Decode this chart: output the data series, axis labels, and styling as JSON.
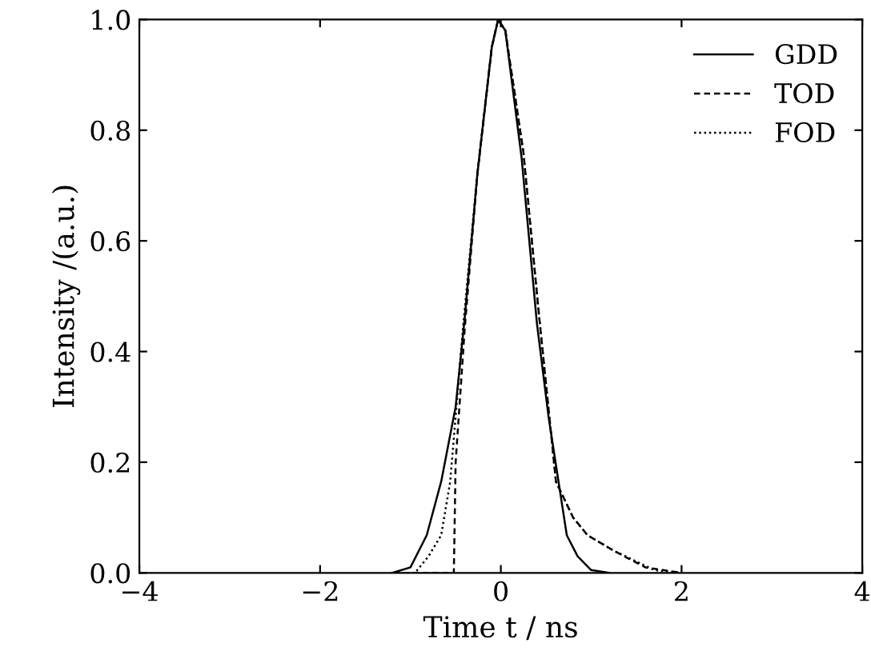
{
  "chart_data": {
    "type": "line",
    "xlabel": "Time t / ns",
    "ylabel": "Intensity /(a.u.)",
    "xlim": [
      -4,
      4
    ],
    "ylim": [
      0,
      1
    ],
    "xticks": [
      {
        "value": -4,
        "label": "−4"
      },
      {
        "value": -2,
        "label": "−2"
      },
      0,
      2,
      4
    ],
    "yticks": [
      {
        "value": 0,
        "label": "0.0"
      },
      {
        "value": 0.2,
        "label": "0.2"
      },
      {
        "value": 0.4,
        "label": "0.4"
      },
      {
        "value": 0.6,
        "label": "0.6"
      },
      {
        "value": 0.8,
        "label": "0.8"
      },
      {
        "value": 1,
        "label": "1.0"
      }
    ],
    "legend": "top right",
    "grid": false,
    "marker": "none",
    "series": [
      {
        "name": "GDD",
        "color": "#000000",
        "line_style": "solid",
        "x": [
          -1.2,
          -1.0,
          -0.82,
          -0.66,
          -0.5,
          -0.4,
          -0.26,
          -0.1,
          -0.03,
          0.05,
          0.23,
          0.4,
          0.53,
          0.73,
          0.85,
          1.0,
          1.2
        ],
        "values": [
          0,
          0.01,
          0.068,
          0.165,
          0.3,
          0.46,
          0.72,
          0.95,
          1.0,
          0.98,
          0.75,
          0.45,
          0.28,
          0.068,
          0.03,
          0.005,
          0
        ]
      },
      {
        "name": "TOD",
        "color": "#000000",
        "line_style": "dashed",
        "x": [
          -1.2,
          -0.52,
          -0.5,
          -0.4,
          -0.26,
          -0.1,
          -0.03,
          0.05,
          0.25,
          0.42,
          0.61,
          0.8,
          0.96,
          1.25,
          1.6,
          2.0
        ],
        "values": [
          0,
          0,
          0.2,
          0.44,
          0.72,
          0.95,
          1.0,
          0.98,
          0.76,
          0.47,
          0.165,
          0.1,
          0.068,
          0.04,
          0.01,
          0
        ]
      },
      {
        "name": "FOD",
        "color": "#000000",
        "line_style": "dotted",
        "x": [
          -1.2,
          -0.95,
          -0.8,
          -0.66,
          -0.56,
          -0.42,
          -0.26,
          -0.1,
          -0.03,
          0.05,
          0.25,
          0.42,
          0.61,
          0.8,
          0.96,
          1.25,
          1.7,
          2.0
        ],
        "values": [
          0,
          0,
          0.03,
          0.068,
          0.165,
          0.44,
          0.72,
          0.95,
          1.0,
          0.98,
          0.76,
          0.47,
          0.165,
          0.1,
          0.068,
          0.04,
          0.005,
          0
        ]
      }
    ]
  }
}
